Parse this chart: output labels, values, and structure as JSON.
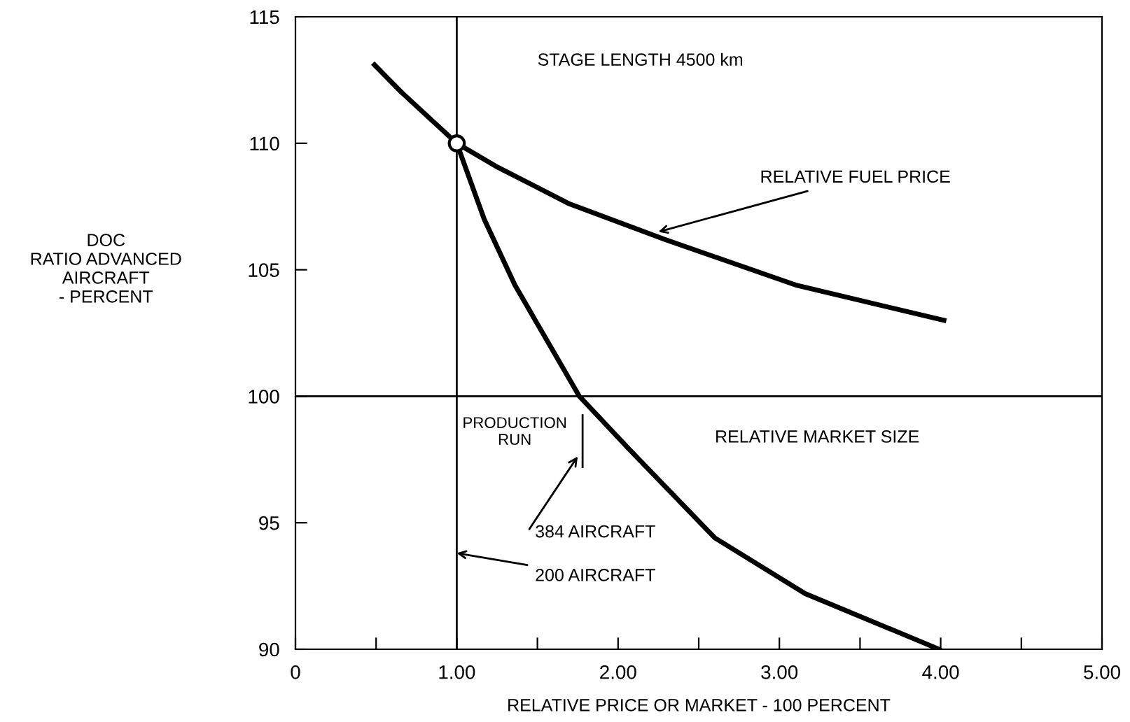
{
  "chart_data": {
    "type": "line",
    "xlabel": "RELATIVE PRICE OR MARKET - 100 PERCENT",
    "ylabel": "DOC\nRATIO ADVANCED\nAIRCRAFT\n- PERCENT",
    "series": [
      {
        "color": "#000000",
        "x": [
          0.49,
          0.66,
          1.0,
          1.24,
          1.7,
          2.29,
          3.1,
          4.02
        ],
        "values": [
          113.1,
          112.0,
          110.0,
          109.1,
          107.6,
          106.2,
          104.4,
          103.0
        ]
      },
      {
        "color": "#000000",
        "x": [
          1.0,
          1.17,
          1.36,
          1.76,
          2.07,
          2.6,
          3.16,
          3.99
        ],
        "values": [
          110.0,
          107.0,
          104.4,
          100.0,
          97.9,
          94.4,
          92.2,
          90.0
        ]
      },
      {
        "type": "scatter",
        "marker": "circle",
        "color": "#000000",
        "x": [
          1.0
        ],
        "values": [
          110.0
        ]
      }
    ],
    "xlim": [
      0,
      5
    ],
    "ylim": [
      90,
      115
    ],
    "xticks": [
      0,
      {
        "value": 0.5,
        "label": null
      },
      {
        "value": 1,
        "label": "1.00"
      },
      {
        "value": 1.5,
        "label": null
      },
      {
        "value": 2,
        "label": "2.00"
      },
      {
        "value": 2.5,
        "label": null
      },
      {
        "value": 3,
        "label": "3.00"
      },
      {
        "value": 3.5,
        "label": null
      },
      {
        "value": 4,
        "label": "4.00"
      },
      {
        "value": 4.5,
        "label": null
      },
      {
        "value": 5,
        "label": "5.00"
      }
    ],
    "yticks": [
      90,
      95,
      100,
      105,
      110,
      115
    ],
    "ref_lines": [
      {
        "axis": "x",
        "value": 1
      },
      {
        "axis": "y",
        "value": 100
      }
    ],
    "annotations": [
      "STAGE LENGTH 4500 km",
      {
        "text": "RELATIVE FUEL PRICE",
        "x": 2.25,
        "y": 106.5
      },
      "PRODUCTION\nRUN",
      "RELATIVE MARKET SIZE",
      "384 AIRCRAFT",
      {
        "text": "200 AIRCRAFT",
        "x": 1.0,
        "y": 93.8
      }
    ],
    "grid": false,
    "legend": false,
    "marker": "none",
    "line_style": "solid"
  }
}
